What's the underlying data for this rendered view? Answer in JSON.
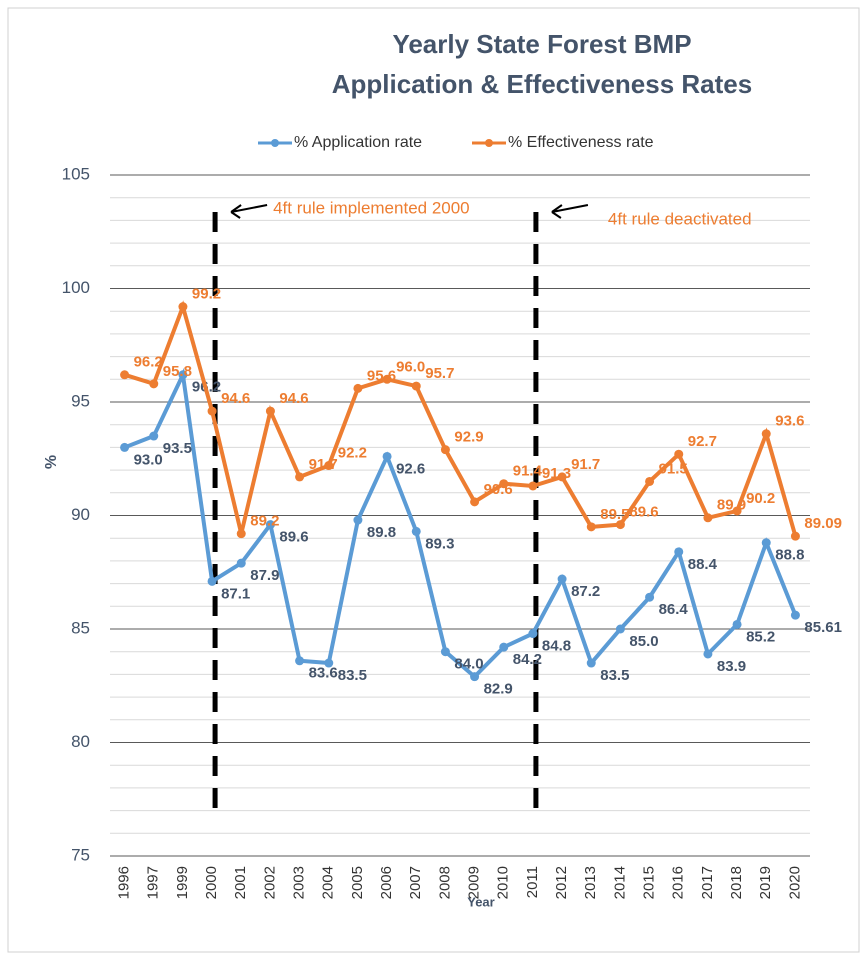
{
  "chart_data": {
    "type": "line",
    "title": [
      "Yearly State Forest BMP",
      "Application & Effectiveness Rates"
    ],
    "x_label": "Year",
    "y_label": "%",
    "categories": [
      "1996",
      "1997",
      "1999",
      "2000",
      "2001",
      "2002",
      "2003",
      "2004",
      "2005",
      "2006",
      "2007",
      "2008",
      "2009",
      "2010",
      "2011",
      "2012",
      "2013",
      "2014",
      "2015",
      "2016",
      "2017",
      "2018",
      "2019",
      "2020"
    ],
    "series": [
      {
        "name": "% Application rate",
        "color": "#5b9bd5",
        "values": [
          93.0,
          93.5,
          96.2,
          87.1,
          87.9,
          89.6,
          83.6,
          83.5,
          89.8,
          92.6,
          89.3,
          84.0,
          82.9,
          84.2,
          84.8,
          87.2,
          83.5,
          85.0,
          86.4,
          88.4,
          83.9,
          85.2,
          88.8,
          85.61
        ],
        "value_labels": [
          "93.0",
          "93.5",
          "96.2",
          "87.1",
          "87.9",
          "89.6",
          "83.6",
          "83.5",
          "89.8",
          "92.6",
          "89.3",
          "84.0",
          "82.9",
          "84.2",
          "84.8",
          "87.2",
          "83.5",
          "85.0",
          "86.4",
          "88.4",
          "83.9",
          "85.2",
          "88.8",
          "85.61"
        ]
      },
      {
        "name": "% Effectiveness rate",
        "color": "#ed7d31",
        "values": [
          96.2,
          95.8,
          99.2,
          94.6,
          89.2,
          94.6,
          91.7,
          92.2,
          95.6,
          96.0,
          95.7,
          92.9,
          90.6,
          91.4,
          91.3,
          91.7,
          89.5,
          89.6,
          91.5,
          92.7,
          89.9,
          90.2,
          93.6,
          89.09
        ],
        "value_labels": [
          "96.2",
          "95.8",
          "99.2",
          "94.6",
          "89.2",
          "94.6",
          "91.7",
          "92.2",
          "95.6",
          "96.0",
          "95.7",
          "92.9",
          "90.6",
          "91.4",
          "91.3",
          "91.7",
          "89.5",
          "89.6",
          "91.5",
          "92.7",
          "89.9",
          "90.2",
          "93.6",
          "89.09"
        ]
      }
    ],
    "annotations": [
      {
        "text": "4ft rule implemented 2000",
        "at": "2000"
      },
      {
        "text": "4ft rule deactivated",
        "at": "2011"
      }
    ],
    "ylim": [
      75,
      105
    ],
    "yticks": [
      75,
      80,
      85,
      90,
      95,
      100,
      105
    ],
    "minor_step": 1,
    "grid": true,
    "legend": "top"
  }
}
